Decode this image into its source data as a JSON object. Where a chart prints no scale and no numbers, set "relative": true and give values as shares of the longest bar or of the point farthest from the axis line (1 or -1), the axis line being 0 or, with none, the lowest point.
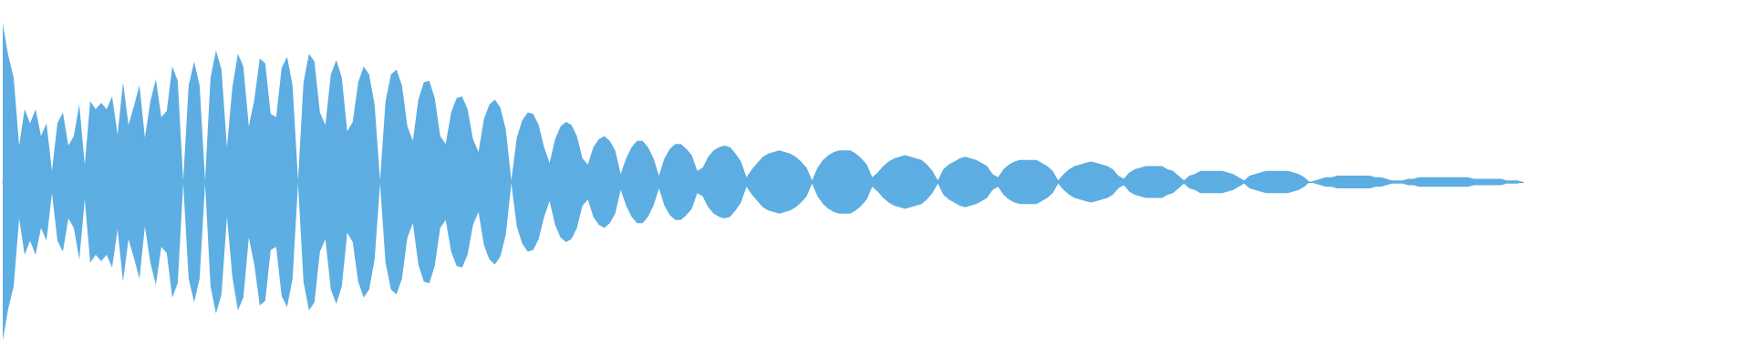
{
  "chart_data": {
    "type": "area",
    "relative": true,
    "categories": [
      null,
      null,
      null,
      null,
      null,
      null,
      null,
      null,
      null,
      null,
      null,
      null,
      null,
      null,
      null,
      null,
      null,
      null,
      null,
      null,
      null,
      null,
      null,
      null,
      null,
      null,
      null,
      null,
      null,
      null,
      null,
      null,
      null,
      null,
      null,
      null,
      null,
      null,
      null,
      null,
      null,
      null,
      null,
      null,
      null,
      null,
      null,
      null,
      null,
      null,
      null,
      null,
      null,
      null,
      null,
      null,
      null,
      null,
      null,
      null,
      null,
      null,
      null,
      null,
      null,
      null,
      null,
      null,
      null,
      null,
      null,
      null,
      null,
      null,
      null,
      null,
      null,
      null,
      null,
      null,
      null,
      null,
      null,
      null,
      null,
      null,
      null,
      null,
      null,
      null,
      null,
      null,
      null,
      null,
      null,
      null,
      null,
      null,
      null,
      null,
      null,
      null,
      null,
      null,
      null,
      null,
      null,
      null,
      null,
      null,
      null,
      null,
      null,
      null,
      null,
      null,
      null,
      null,
      null,
      null,
      null,
      null,
      null,
      null,
      null,
      null,
      null,
      null,
      null,
      null,
      null,
      null,
      null,
      null,
      null,
      null,
      null,
      null,
      null,
      null,
      null,
      null,
      null,
      null,
      null,
      null,
      null,
      null,
      null,
      null,
      null,
      null,
      null,
      null,
      null,
      null,
      null,
      null,
      null,
      null,
      null,
      null,
      null,
      null,
      null,
      null,
      null,
      null,
      null,
      null,
      null,
      null,
      null,
      null,
      null,
      null,
      null,
      null,
      null,
      null,
      null,
      null,
      null,
      null,
      null,
      null,
      null,
      null,
      null,
      null,
      null,
      null,
      null,
      null,
      null,
      null,
      null,
      null,
      null,
      null,
      null,
      null,
      null,
      null,
      null,
      null,
      null,
      null,
      null,
      null,
      null,
      null,
      null,
      null,
      null,
      null,
      null,
      null,
      null,
      null,
      null,
      null,
      null,
      null,
      null,
      null,
      null,
      null,
      null,
      null,
      null,
      null,
      null,
      null,
      null,
      null,
      null,
      null,
      null,
      null,
      null,
      null,
      null,
      null,
      null,
      null,
      null,
      null,
      null,
      null,
      null,
      null,
      null,
      null,
      null,
      null,
      null,
      null,
      null,
      null,
      null,
      null,
      null,
      null,
      null,
      null,
      null,
      null,
      null,
      null,
      null,
      null,
      null,
      null,
      null,
      null,
      null,
      null,
      null
    ],
    "series": [
      {
        "color": "#5dade2",
        "values": [
          1,
          0.8,
          0.66,
          0.23,
          0.46,
          0.37,
          0.46,
          0.29,
          0.37,
          0.07,
          0.37,
          0.44,
          0.23,
          0.29,
          0.49,
          0.11,
          0.51,
          0.46,
          0.5,
          0.46,
          0.54,
          0.3,
          0.63,
          0.36,
          0.48,
          0.61,
          0.28,
          0.51,
          0.65,
          0.41,
          0.45,
          0.73,
          0.64,
          0.01,
          0.61,
          0.76,
          0.61,
          0.01,
          0.66,
          0.83,
          0.71,
          0.22,
          0.6,
          0.81,
          0.73,
          0.35,
          0.52,
          0.78,
          0.75,
          0.43,
          0.41,
          0.72,
          0.79,
          0.61,
          0.01,
          0.63,
          0.81,
          0.76,
          0.44,
          0.36,
          0.68,
          0.77,
          0.66,
          0.32,
          0.38,
          0.63,
          0.73,
          0.68,
          0.49,
          0.01,
          0.51,
          0.68,
          0.71,
          0.61,
          0.35,
          0.26,
          0.52,
          0.63,
          0.64,
          0.53,
          0.29,
          0.24,
          0.44,
          0.53,
          0.54,
          0.46,
          0.27,
          0.19,
          0.4,
          0.49,
          0.52,
          0.47,
          0.33,
          0.01,
          0.28,
          0.39,
          0.44,
          0.43,
          0.36,
          0.22,
          0.12,
          0.27,
          0.35,
          0.38,
          0.36,
          0.29,
          0.15,
          0.11,
          0.22,
          0.27,
          0.29,
          0.26,
          0.2,
          0.05,
          0.15,
          0.22,
          0.26,
          0.26,
          0.22,
          0.15,
          0.04,
          0.15,
          0.21,
          0.24,
          0.24,
          0.21,
          0.17,
          0.07,
          0.09,
          0.16,
          0.2,
          0.22,
          0.23,
          0.22,
          0.18,
          0.13,
          0.03,
          0.08,
          0.12,
          0.16,
          0.18,
          0.19,
          0.2,
          0.19,
          0.18,
          0.16,
          0.13,
          0.09,
          0.01,
          0.09,
          0.14,
          0.17,
          0.19,
          0.2,
          0.2,
          0.2,
          0.18,
          0.15,
          0.11,
          0.03,
          0.06,
          0.1,
          0.13,
          0.15,
          0.16,
          0.17,
          0.16,
          0.15,
          0.14,
          0.11,
          0.07,
          0.01,
          0.08,
          0.11,
          0.13,
          0.15,
          0.16,
          0.15,
          0.14,
          0.12,
          0.1,
          0.05,
          0.03,
          0.08,
          0.11,
          0.13,
          0.14,
          0.14,
          0.14,
          0.14,
          0.12,
          0.1,
          0.07,
          0.01,
          0.05,
          0.08,
          0.1,
          0.11,
          0.12,
          0.13,
          0.12,
          0.11,
          0.1,
          0.08,
          0.04,
          0.02,
          0.06,
          0.08,
          0.09,
          0.1,
          0.1,
          0.1,
          0.1,
          0.08,
          0.07,
          0.04,
          0.01,
          0.04,
          0.05,
          0.07,
          0.07,
          0.07,
          0.07,
          0.07,
          0.06,
          0.05,
          0.03,
          0.01,
          0.04,
          0.05,
          0.06,
          0.07,
          0.07,
          0.07,
          0.07,
          0.07,
          0.06,
          0.05,
          0.03,
          0,
          0.01,
          0.02,
          0.03,
          0.03,
          0.04,
          0.04,
          0.04,
          0.04,
          0.04,
          0.04,
          0.04,
          0.03,
          0.03,
          0.02,
          0.01,
          0.01,
          0.01,
          0.02,
          0.02,
          0.03,
          0.03,
          0.03,
          0.03,
          0.03,
          0.03,
          0.03,
          0.03,
          0.03,
          0.03,
          0.02,
          0.02,
          0.02,
          0.02,
          0.02,
          0.02,
          0.01,
          0.01,
          0.01,
          0
        ]
      },
      {
        "color": "#5daee2",
        "values": [
          -1,
          -0.8,
          -0.66,
          -0.23,
          -0.46,
          -0.37,
          -0.46,
          -0.29,
          -0.37,
          -0.07,
          -0.37,
          -0.44,
          -0.23,
          -0.29,
          -0.49,
          -0.11,
          -0.51,
          -0.46,
          -0.5,
          -0.46,
          -0.54,
          -0.3,
          -0.63,
          -0.36,
          -0.48,
          -0.61,
          -0.28,
          -0.51,
          -0.65,
          -0.41,
          -0.45,
          -0.73,
          -0.64,
          -0.01,
          -0.61,
          -0.76,
          -0.61,
          -0.01,
          -0.66,
          -0.83,
          -0.71,
          -0.22,
          -0.6,
          -0.81,
          -0.73,
          -0.35,
          -0.52,
          -0.78,
          -0.75,
          -0.43,
          -0.41,
          -0.72,
          -0.79,
          -0.61,
          -0.01,
          -0.63,
          -0.81,
          -0.76,
          -0.44,
          -0.36,
          -0.68,
          -0.77,
          -0.66,
          -0.32,
          -0.38,
          -0.63,
          -0.73,
          -0.68,
          -0.49,
          -0.01,
          -0.51,
          -0.68,
          -0.71,
          -0.61,
          -0.35,
          -0.26,
          -0.52,
          -0.63,
          -0.64,
          -0.53,
          -0.29,
          -0.24,
          -0.44,
          -0.53,
          -0.54,
          -0.46,
          -0.27,
          -0.19,
          -0.4,
          -0.49,
          -0.52,
          -0.47,
          -0.33,
          -0.01,
          -0.28,
          -0.39,
          -0.44,
          -0.43,
          -0.36,
          -0.22,
          -0.12,
          -0.27,
          -0.35,
          -0.38,
          -0.36,
          -0.29,
          -0.15,
          -0.11,
          -0.22,
          -0.27,
          -0.29,
          -0.26,
          -0.2,
          -0.05,
          -0.15,
          -0.22,
          -0.26,
          -0.26,
          -0.22,
          -0.15,
          -0.04,
          -0.15,
          -0.21,
          -0.24,
          -0.24,
          -0.21,
          -0.17,
          -0.07,
          -0.09,
          -0.16,
          -0.2,
          -0.22,
          -0.23,
          -0.22,
          -0.18,
          -0.13,
          -0.03,
          -0.08,
          -0.12,
          -0.16,
          -0.18,
          -0.19,
          -0.2,
          -0.19,
          -0.18,
          -0.16,
          -0.13,
          -0.09,
          -0.01,
          -0.09,
          -0.14,
          -0.17,
          -0.19,
          -0.2,
          -0.2,
          -0.2,
          -0.18,
          -0.15,
          -0.11,
          -0.03,
          -0.06,
          -0.1,
          -0.13,
          -0.15,
          -0.16,
          -0.17,
          -0.16,
          -0.15,
          -0.14,
          -0.11,
          -0.07,
          -0.01,
          -0.08,
          -0.11,
          -0.13,
          -0.15,
          -0.16,
          -0.15,
          -0.14,
          -0.12,
          -0.1,
          -0.05,
          -0.03,
          -0.08,
          -0.11,
          -0.13,
          -0.14,
          -0.14,
          -0.14,
          -0.14,
          -0.12,
          -0.1,
          -0.07,
          -0.01,
          -0.05,
          -0.08,
          -0.1,
          -0.11,
          -0.12,
          -0.13,
          -0.12,
          -0.11,
          -0.1,
          -0.08,
          -0.04,
          -0.02,
          -0.06,
          -0.08,
          -0.09,
          -0.1,
          -0.1,
          -0.1,
          -0.1,
          -0.08,
          -0.07,
          -0.04,
          -0.01,
          -0.04,
          -0.05,
          -0.07,
          -0.07,
          -0.07,
          -0.07,
          -0.07,
          -0.06,
          -0.05,
          -0.03,
          -0.01,
          -0.04,
          -0.05,
          -0.06,
          -0.07,
          -0.07,
          -0.07,
          -0.07,
          -0.07,
          -0.06,
          -0.05,
          -0.03,
          0,
          -0.01,
          -0.02,
          -0.03,
          -0.03,
          -0.04,
          -0.04,
          -0.04,
          -0.04,
          -0.04,
          -0.04,
          -0.04,
          -0.03,
          -0.03,
          -0.02,
          -0.01,
          -0.01,
          -0.01,
          -0.02,
          -0.02,
          -0.03,
          -0.03,
          -0.03,
          -0.03,
          -0.03,
          -0.03,
          -0.03,
          -0.03,
          -0.03,
          -0.03,
          -0.02,
          -0.02,
          -0.02,
          -0.02,
          -0.02,
          -0.02,
          -0.01,
          -0.01,
          -0.01,
          0
        ]
      }
    ]
  }
}
